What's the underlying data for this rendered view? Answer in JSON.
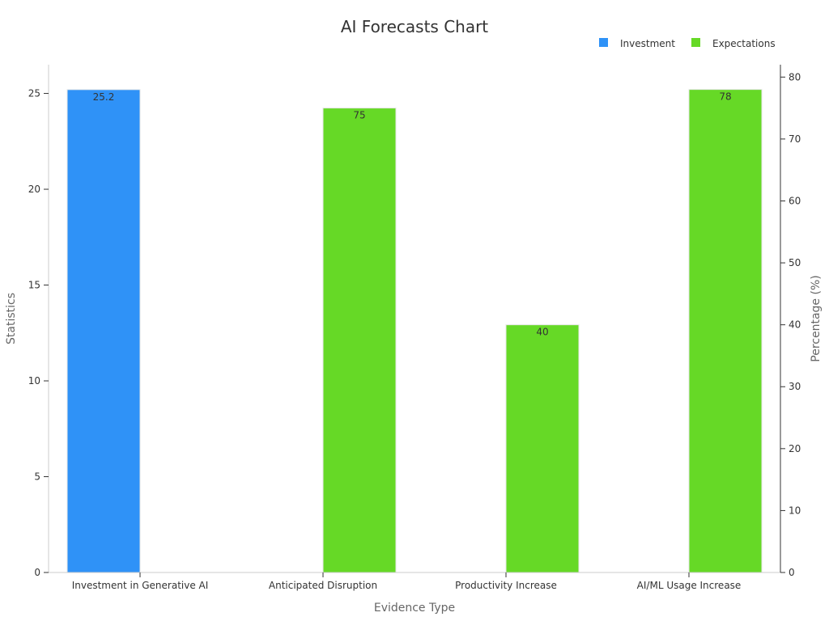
{
  "chart_data": {
    "type": "bar",
    "title": "AI Forecasts Chart",
    "xlabel": "Evidence Type",
    "ylabel": "Statistics",
    "y2label": "Percentage (%)",
    "categories": [
      "Investment in Generative AI",
      "Anticipated Disruption",
      "Productivity Increase",
      "AI/ML Usage Increase"
    ],
    "ylim": [
      0,
      26.5
    ],
    "y2lim": [
      0,
      82
    ],
    "yticks": [
      0,
      5,
      10,
      15,
      20,
      25
    ],
    "y2ticks": [
      0,
      10,
      20,
      30,
      40,
      50,
      60,
      70,
      80
    ],
    "grid": false,
    "legend_position": "top-right",
    "series": [
      {
        "name": "Investment",
        "axis": "left",
        "color": "#2f92f7",
        "values": [
          25.2,
          null,
          null,
          null
        ],
        "labels": [
          "25.2",
          null,
          null,
          null
        ]
      },
      {
        "name": "Expectations",
        "axis": "right",
        "color": "#66d926",
        "values": [
          null,
          75,
          40,
          78
        ],
        "labels": [
          null,
          "75",
          "40",
          "78"
        ]
      }
    ]
  }
}
